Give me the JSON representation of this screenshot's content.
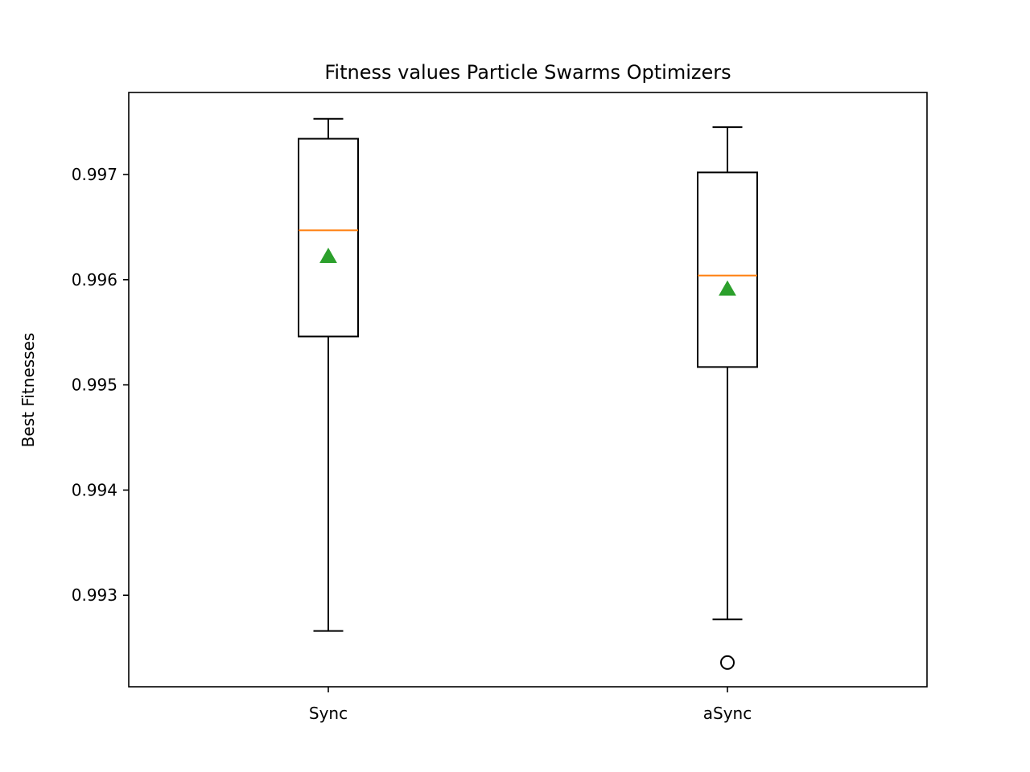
{
  "chart_data": {
    "type": "box",
    "title": "Fitness values Particle Swarms Optimizers",
    "xlabel": "",
    "ylabel": "Best Fitnesses",
    "ylim": [
      0.99213,
      0.99778
    ],
    "yticks": [
      0.993,
      0.994,
      0.995,
      0.996,
      0.997
    ],
    "ytick_labels": [
      "0.993",
      "0.994",
      "0.995",
      "0.996",
      "0.997"
    ],
    "categories": [
      "Sync",
      "aSync"
    ],
    "grid": false,
    "legend": "none",
    "boxes": [
      {
        "category": "Sync",
        "whisker_low": 0.99266,
        "q1": 0.99546,
        "median": 0.99647,
        "q3": 0.99734,
        "whisker_high": 0.99753,
        "mean": 0.99622,
        "outliers": []
      },
      {
        "category": "aSync",
        "whisker_low": 0.99277,
        "q1": 0.99517,
        "median": 0.99604,
        "q3": 0.99702,
        "whisker_high": 0.99745,
        "mean": 0.99591,
        "outliers": [
          0.99236
        ]
      }
    ],
    "colors": {
      "box": "#000000",
      "median": "#ff7f0e",
      "mean": "#2ca02c",
      "outlier": "#000000"
    }
  }
}
